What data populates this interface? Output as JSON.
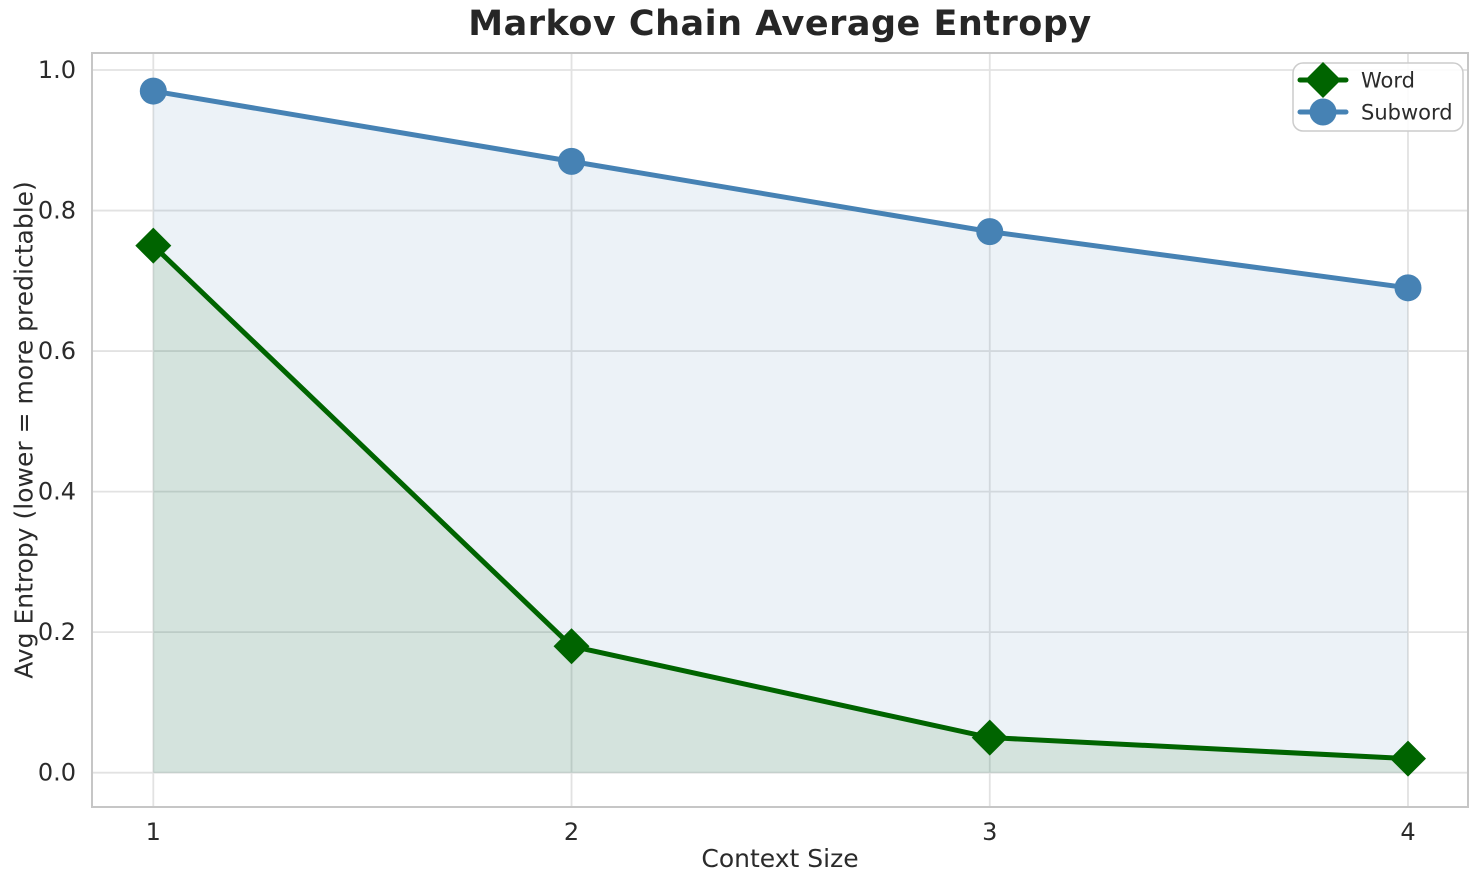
{
  "chart_data": {
    "type": "line",
    "title": "Markov Chain Average Entropy",
    "xlabel": "Context Size",
    "ylabel": "Avg Entropy (lower = more predictable)",
    "x": [
      1,
      2,
      3,
      4
    ],
    "xtick_labels": [
      "1",
      "2",
      "3",
      "4"
    ],
    "yticks": [
      0.0,
      0.2,
      0.4,
      0.6,
      0.8,
      1.0
    ],
    "ytick_labels": [
      "0.0",
      "0.2",
      "0.4",
      "0.6",
      "0.8",
      "1.0"
    ],
    "xlim": [
      0.85,
      4.15
    ],
    "ylim": [
      -0.048,
      1.024
    ],
    "grid": true,
    "legend_position": "upper right",
    "series": [
      {
        "name": "Word",
        "marker": "diamond",
        "color": "#006400",
        "fill_alpha": 0.1,
        "values": [
          0.75,
          0.18,
          0.05,
          0.02
        ]
      },
      {
        "name": "Subword",
        "marker": "circle",
        "color": "#4682b4",
        "fill_alpha": 0.1,
        "values": [
          0.97,
          0.87,
          0.77,
          0.69
        ]
      }
    ],
    "colors": {
      "title_text": "#262626",
      "tick_text": "#2b2b2b",
      "gridline": "#e2e2e2",
      "spine": "#c6c6c6",
      "legend_border": "#cccccc"
    }
  }
}
